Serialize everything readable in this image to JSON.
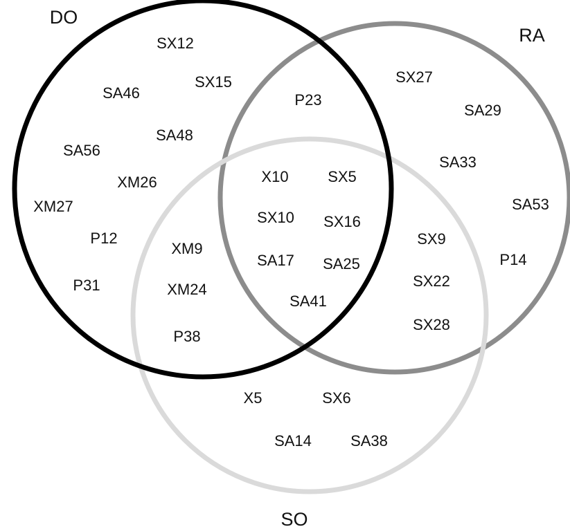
{
  "sets": [
    {
      "key": "do",
      "name": "DO",
      "color": "#000000"
    },
    {
      "key": "ra",
      "name": "RA",
      "color": "#8c8c8c"
    },
    {
      "key": "so",
      "name": "SO",
      "color": "#dadada"
    }
  ],
  "regions": {
    "do_only": [
      "SX12",
      "SA46",
      "SX15",
      "SA48",
      "SA56",
      "XM26",
      "XM27",
      "P12",
      "P31"
    ],
    "do_ra": [
      "P23"
    ],
    "ra_only": [
      "SX27",
      "SA29",
      "SA33",
      "SA53",
      "P14"
    ],
    "do_ra_so": [
      "X10",
      "SX5",
      "SX10",
      "SX16",
      "SA17",
      "SA25",
      "SA41"
    ],
    "do_so": [
      "XM9",
      "XM24",
      "P38"
    ],
    "ra_so": [
      "SX9",
      "SX22",
      "SX28"
    ],
    "so_only": [
      "X5",
      "SX6",
      "SA14",
      "SA38"
    ]
  }
}
